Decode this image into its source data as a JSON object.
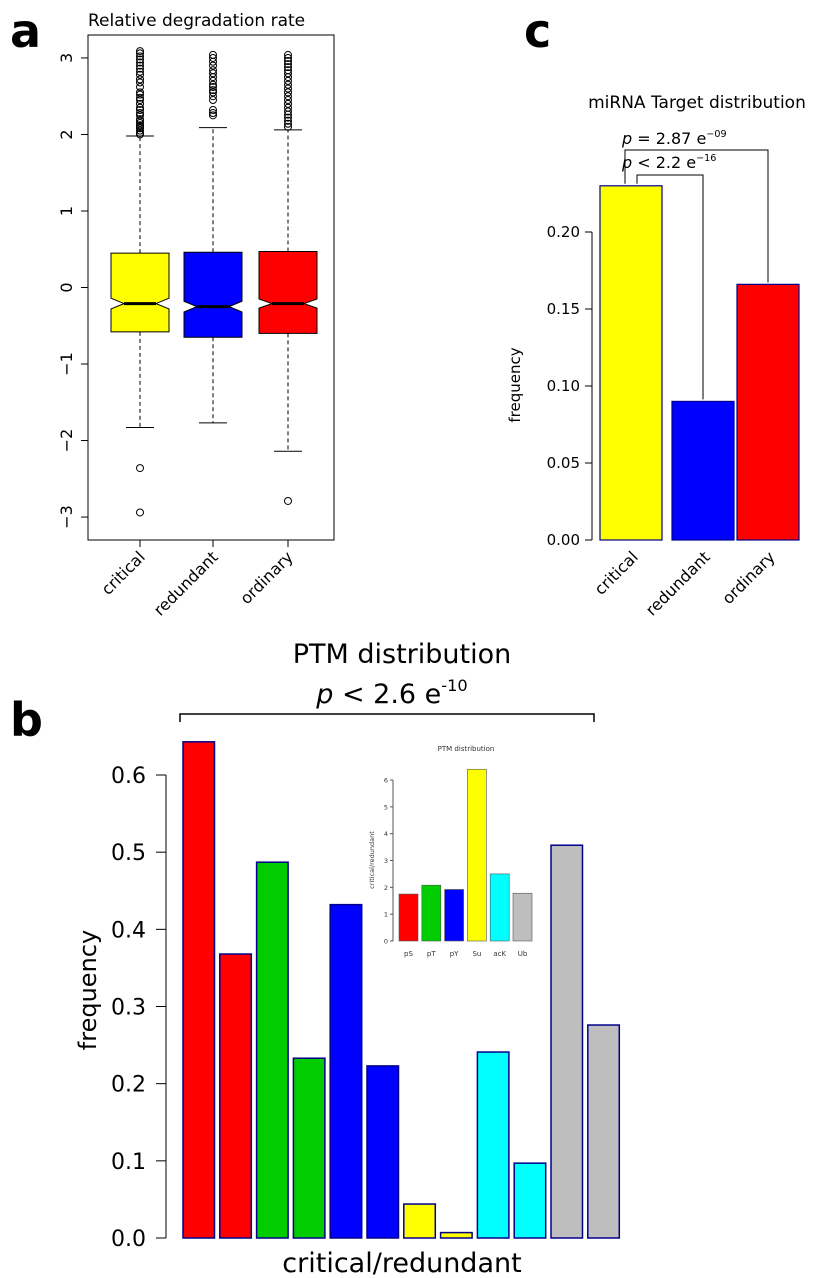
{
  "panels": {
    "a": "a",
    "b": "b",
    "c": "c"
  },
  "chart_data": [
    {
      "id": "a",
      "type": "box",
      "title": "Relative degradation rate",
      "xlabel": "",
      "ylabel": "",
      "categories": [
        "critical",
        "redundant",
        "ordinary"
      ],
      "ylim": [
        -3.3,
        3.3
      ],
      "yticks": [
        -3,
        -2,
        -1,
        0,
        1,
        2,
        3
      ],
      "ytick_labels": [
        "−3",
        "−2",
        "−1",
        "0",
        "1",
        "2",
        "3"
      ],
      "colors": [
        "#ffff00",
        "#0000ff",
        "#ff0000"
      ],
      "notched": true,
      "boxes": [
        {
          "name": "critical",
          "q1": -0.58,
          "median": -0.21,
          "q3": 0.45,
          "notch_low": -0.28,
          "notch_high": -0.14,
          "whisker_low": -1.83,
          "whisker_high": 1.98,
          "outliers": [
            -2.36,
            -2.94,
            2.0,
            2.02,
            2.05,
            2.08,
            2.1,
            2.12,
            2.15,
            2.18,
            2.2,
            2.25,
            2.28,
            2.32,
            2.35,
            2.4,
            2.45,
            2.48,
            2.52,
            2.55,
            2.62,
            2.68,
            2.72,
            2.78,
            2.82,
            2.86,
            2.9,
            2.94,
            2.98,
            3.02,
            3.06,
            3.09
          ]
        },
        {
          "name": "redundant",
          "q1": -0.65,
          "median": -0.25,
          "q3": 0.46,
          "notch_low": -0.32,
          "notch_high": -0.18,
          "whisker_low": -1.77,
          "whisker_high": 2.09,
          "outliers": [
            2.25,
            2.28,
            2.32,
            2.45,
            2.5,
            2.55,
            2.58,
            2.62,
            2.65,
            2.7,
            2.75,
            2.8,
            2.84,
            2.9,
            2.95,
            3.0,
            3.04
          ]
        },
        {
          "name": "ordinary",
          "q1": -0.6,
          "median": -0.21,
          "q3": 0.47,
          "notch_low": -0.27,
          "notch_high": -0.15,
          "whisker_low": -2.14,
          "whisker_high": 2.06,
          "outliers": [
            -2.79,
            2.1,
            2.14,
            2.18,
            2.22,
            2.26,
            2.3,
            2.35,
            2.4,
            2.45,
            2.5,
            2.55,
            2.6,
            2.65,
            2.7,
            2.75,
            2.8,
            2.84,
            2.88,
            2.92,
            2.96,
            3.0,
            3.04
          ]
        }
      ]
    },
    {
      "id": "b",
      "type": "bar",
      "title": "PTM distribution",
      "p_value": {
        "p": "p",
        "text": " < 2.6 e",
        "exp": "-10"
      },
      "xlabel": "critical/redundant",
      "ylabel": "frequency",
      "ylim": [
        0,
        0.66
      ],
      "yticks": [
        0.0,
        0.1,
        0.2,
        0.3,
        0.4,
        0.5,
        0.6
      ],
      "ytick_labels": [
        "0.0",
        "0.1",
        "0.2",
        "0.3",
        "0.4",
        "0.5",
        "0.6"
      ],
      "values": [
        0.643,
        0.368,
        0.487,
        0.233,
        0.432,
        0.223,
        0.044,
        0.007,
        0.241,
        0.097,
        0.509,
        0.276
      ],
      "colors": [
        "#ff0000",
        "#ff0000",
        "#00cc00",
        "#00cc00",
        "#0000ff",
        "#0000ff",
        "#ffff00",
        "#ffff00",
        "#00ffff",
        "#00ffff",
        "#bebebe",
        "#bebebe"
      ],
      "inset": {
        "type": "bar",
        "title": "PTM distribution",
        "ylabel": "critical/redundant",
        "categories": [
          "pS",
          "pT",
          "pY",
          "Su",
          "acK",
          "Ub"
        ],
        "values": [
          1.75,
          2.08,
          1.92,
          6.4,
          2.5,
          1.78
        ],
        "colors": [
          "#ff0000",
          "#00cc00",
          "#0000ff",
          "#ffff00",
          "#00ffff",
          "#bebebe"
        ],
        "ylim": [
          0,
          6.6
        ],
        "yticks": [
          0,
          1,
          2,
          3,
          4,
          5,
          6
        ],
        "ytick_labels": [
          "0",
          "1",
          "2",
          "3",
          "4",
          "5",
          "6"
        ]
      }
    },
    {
      "id": "c",
      "type": "bar",
      "title": "miRNA Target distribution",
      "xlabel": "",
      "ylabel": "frequency",
      "categories": [
        "critical",
        "redundant",
        "ordinary"
      ],
      "values": [
        0.23,
        0.09,
        0.166
      ],
      "colors": [
        "#ffff00",
        "#0000ff",
        "#ff0000"
      ],
      "ylim": [
        0,
        0.24
      ],
      "yticks": [
        0.0,
        0.05,
        0.1,
        0.15,
        0.2
      ],
      "ytick_labels": [
        "0.00",
        "0.05",
        "0.10",
        "0.15",
        "0.20"
      ],
      "annotations": [
        {
          "p": "p",
          "text": " = 2.87 e",
          "exp": "−09"
        },
        {
          "p": "p",
          "text": " < 2.2 e",
          "exp": "−16"
        }
      ]
    }
  ]
}
